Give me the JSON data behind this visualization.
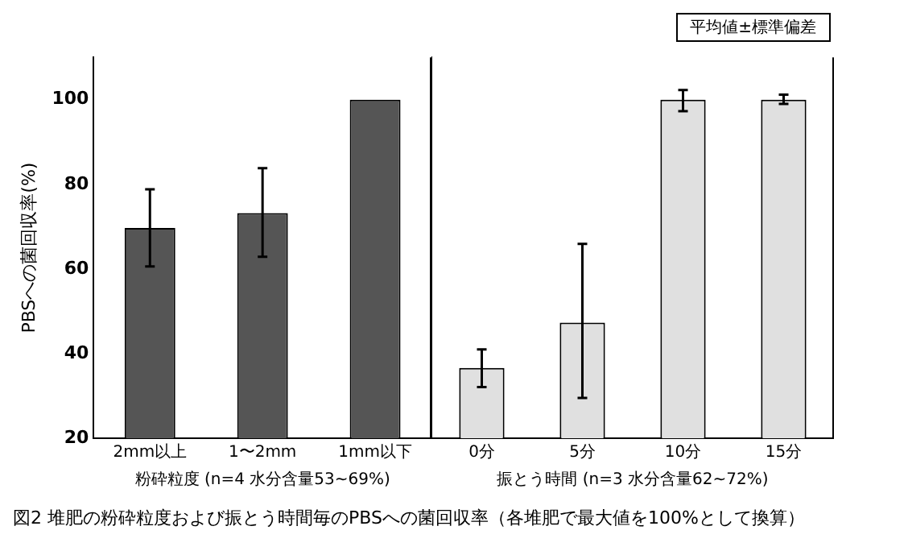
{
  "chart_data": [
    {
      "type": "bar",
      "categories": [
        "2mm以上",
        "1〜2mm",
        "1mm以下"
      ],
      "values": [
        69.7,
        73.2,
        100
      ],
      "color": "#555555",
      "errors": [
        [
          60.6,
          78.8
        ],
        [
          62.9,
          83.8
        ],
        null
      ],
      "ylim": [
        20,
        110
      ],
      "yticks": [
        20,
        40,
        60,
        80,
        100
      ],
      "xlabel": "粉砕粒度 (n=4 水分含量53~69%)",
      "ylabel": "PBSへの菌回収率(%)",
      "annotations": [
        "図2 堆肥の粉砕粒度および振とう時間毎のPBSへの菌回収率（各堆肥で最大値を100%として換算）"
      ]
    },
    {
      "type": "bar",
      "categories": [
        "0分",
        "5分",
        "10分",
        "15分"
      ],
      "values": [
        36.6,
        47.3,
        100,
        100
      ],
      "color": "#e0e0e0",
      "errors": [
        [
          32.1,
          41
        ],
        [
          29.5,
          65.9
        ],
        [
          97.3,
          102.3
        ],
        [
          99,
          101.2
        ]
      ],
      "ylim": [
        20,
        110
      ],
      "yticks": [
        20,
        40,
        60,
        80,
        100
      ],
      "tick_labels": "x",
      "xlabel": "振とう時間 (n=3 水分含量62~72%)",
      "annotations": [
        "平均値±標準偏差"
      ]
    }
  ]
}
